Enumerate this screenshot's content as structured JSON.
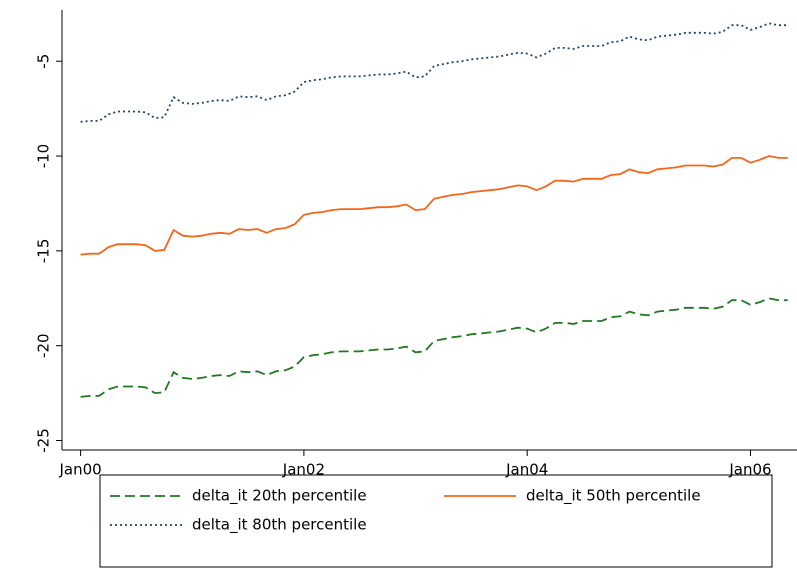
{
  "chart_data": {
    "type": "line",
    "x": [
      "2000-01",
      "2000-02",
      "2000-03",
      "2000-04",
      "2000-05",
      "2000-06",
      "2000-07",
      "2000-08",
      "2000-09",
      "2000-10",
      "2000-11",
      "2000-12",
      "2001-01",
      "2001-02",
      "2001-03",
      "2001-04",
      "2001-05",
      "2001-06",
      "2001-07",
      "2001-08",
      "2001-09",
      "2001-10",
      "2001-11",
      "2001-12",
      "2002-01",
      "2002-02",
      "2002-03",
      "2002-04",
      "2002-05",
      "2002-06",
      "2002-07",
      "2002-08",
      "2002-09",
      "2002-10",
      "2002-11",
      "2002-12",
      "2003-01",
      "2003-02",
      "2003-03",
      "2003-04",
      "2003-05",
      "2003-06",
      "2003-07",
      "2003-08",
      "2003-09",
      "2003-10",
      "2003-11",
      "2003-12",
      "2004-01",
      "2004-02",
      "2004-03",
      "2004-04",
      "2004-05",
      "2004-06",
      "2004-07",
      "2004-08",
      "2004-09",
      "2004-10",
      "2004-11",
      "2004-12",
      "2005-01",
      "2005-02",
      "2005-03",
      "2005-04",
      "2005-05",
      "2005-06",
      "2005-07",
      "2005-08",
      "2005-09",
      "2005-10",
      "2005-11",
      "2005-12",
      "2006-01",
      "2006-02",
      "2006-03",
      "2006-04",
      "2006-05"
    ],
    "series": [
      {
        "name": "delta_it 20th percentile",
        "color": "#1f7a1f",
        "dash": "dashed",
        "values": [
          -22.7,
          -22.65,
          -22.65,
          -22.3,
          -22.15,
          -22.15,
          -22.15,
          -22.2,
          -22.5,
          -22.45,
          -21.4,
          -21.7,
          -21.75,
          -21.7,
          -21.6,
          -21.55,
          -21.6,
          -21.35,
          -21.4,
          -21.35,
          -21.55,
          -21.35,
          -21.3,
          -21.1,
          -20.6,
          -20.5,
          -20.45,
          -20.35,
          -20.3,
          -20.3,
          -20.3,
          -20.25,
          -20.2,
          -20.2,
          -20.15,
          -20.05,
          -20.35,
          -20.3,
          -19.75,
          -19.65,
          -19.55,
          -19.5,
          -19.4,
          -19.35,
          -19.3,
          -19.25,
          -19.15,
          -19.05,
          -19.1,
          -19.3,
          -19.1,
          -18.8,
          -18.8,
          -18.85,
          -18.7,
          -18.7,
          -18.7,
          -18.5,
          -18.45,
          -18.2,
          -18.35,
          -18.4,
          -18.2,
          -18.15,
          -18.1,
          -18.0,
          -18.0,
          -18.0,
          -18.05,
          -17.95,
          -17.6,
          -17.6,
          -17.85,
          -17.7,
          -17.5,
          -17.6,
          -17.6
        ]
      },
      {
        "name": "delta_it 50th percentile",
        "color": "#f4661b",
        "dash": "solid",
        "values": [
          -15.2,
          -15.15,
          -15.15,
          -14.8,
          -14.65,
          -14.65,
          -14.65,
          -14.7,
          -15.0,
          -14.95,
          -13.9,
          -14.2,
          -14.25,
          -14.2,
          -14.1,
          -14.05,
          -14.1,
          -13.85,
          -13.9,
          -13.85,
          -14.05,
          -13.85,
          -13.8,
          -13.6,
          -13.1,
          -13.0,
          -12.95,
          -12.85,
          -12.8,
          -12.8,
          -12.8,
          -12.75,
          -12.7,
          -12.7,
          -12.65,
          -12.55,
          -12.85,
          -12.8,
          -12.25,
          -12.15,
          -12.05,
          -12.0,
          -11.9,
          -11.85,
          -11.8,
          -11.75,
          -11.65,
          -11.55,
          -11.6,
          -11.8,
          -11.6,
          -11.3,
          -11.3,
          -11.35,
          -11.2,
          -11.2,
          -11.2,
          -11.0,
          -10.95,
          -10.7,
          -10.85,
          -10.9,
          -10.7,
          -10.65,
          -10.6,
          -10.5,
          -10.5,
          -10.5,
          -10.55,
          -10.45,
          -10.1,
          -10.1,
          -10.35,
          -10.2,
          -10.0,
          -10.1,
          -10.1
        ]
      },
      {
        "name": "delta_it 80th percentile",
        "color": "#1a476f",
        "dash": "dotted",
        "values": [
          -8.2,
          -8.15,
          -8.15,
          -7.8,
          -7.65,
          -7.65,
          -7.65,
          -7.7,
          -8.0,
          -7.95,
          -6.9,
          -7.2,
          -7.25,
          -7.2,
          -7.1,
          -7.05,
          -7.1,
          -6.85,
          -6.9,
          -6.85,
          -7.05,
          -6.85,
          -6.8,
          -6.6,
          -6.1,
          -6.0,
          -5.95,
          -5.85,
          -5.8,
          -5.8,
          -5.8,
          -5.75,
          -5.7,
          -5.7,
          -5.65,
          -5.55,
          -5.85,
          -5.8,
          -5.25,
          -5.15,
          -5.05,
          -5.0,
          -4.9,
          -4.85,
          -4.8,
          -4.75,
          -4.65,
          -4.55,
          -4.6,
          -4.8,
          -4.6,
          -4.3,
          -4.3,
          -4.35,
          -4.2,
          -4.2,
          -4.2,
          -4.0,
          -3.95,
          -3.7,
          -3.85,
          -3.9,
          -3.7,
          -3.65,
          -3.6,
          -3.5,
          -3.5,
          -3.5,
          -3.55,
          -3.45,
          -3.1,
          -3.1,
          -3.35,
          -3.2,
          -3.0,
          -3.1,
          -3.1
        ]
      }
    ],
    "xlim": [
      "1999-11",
      "2006-06"
    ],
    "xticks": [
      {
        "value": "2000-01",
        "label": "Jan00"
      },
      {
        "value": "2002-01",
        "label": "Jan02"
      },
      {
        "value": "2004-01",
        "label": "Jan04"
      },
      {
        "value": "2006-01",
        "label": "Jan06"
      }
    ],
    "ylim": [
      -25.5,
      -2.3
    ],
    "yticks": [
      -25,
      -20,
      -15,
      -10,
      -5
    ],
    "legend": "bottom"
  }
}
